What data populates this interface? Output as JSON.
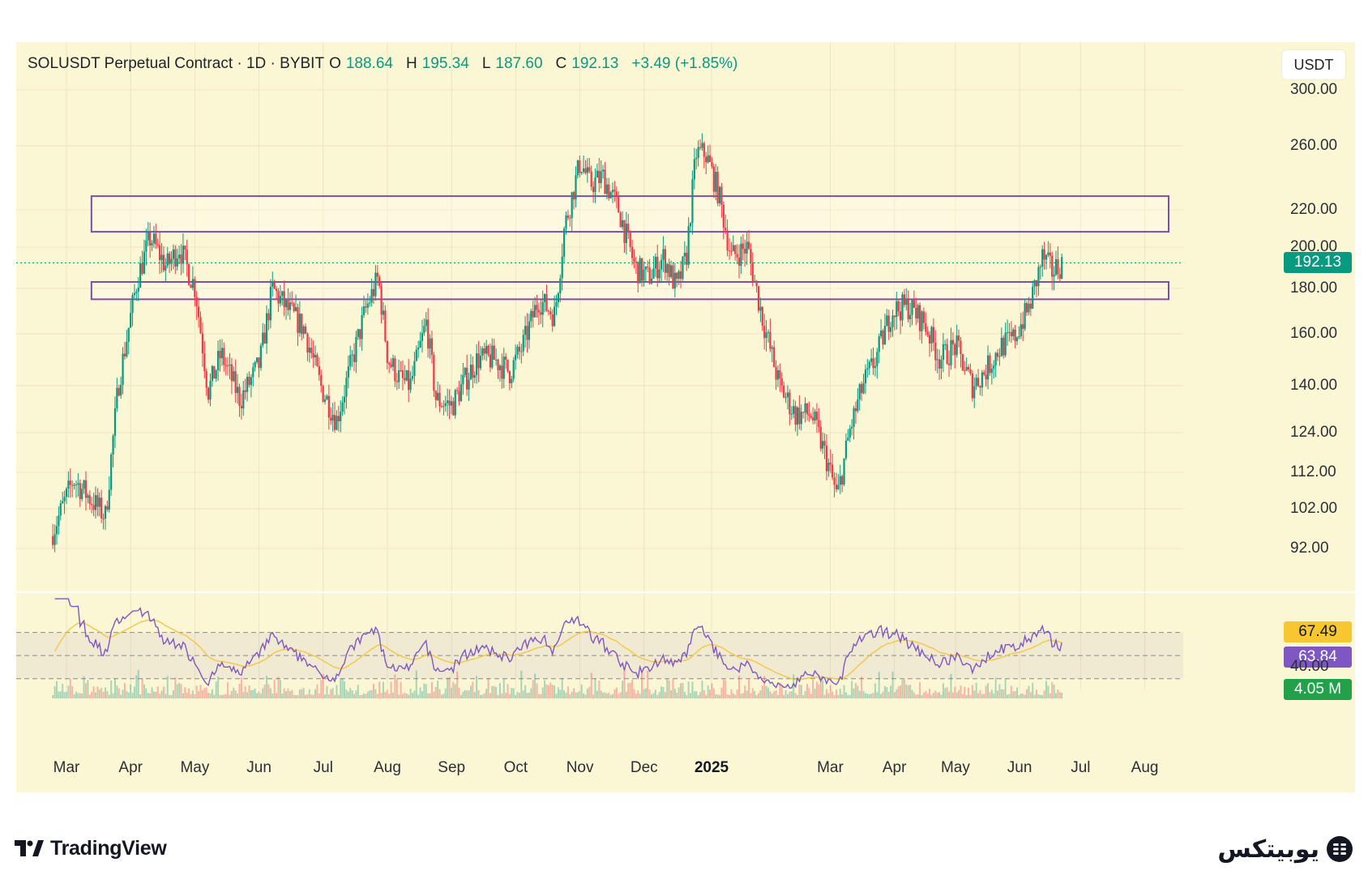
{
  "legend": {
    "symbol": "SOLUSDT Perpetual Contract · 1D · BYBIT",
    "open_label": "O",
    "open": "188.64",
    "high_label": "H",
    "high": "195.34",
    "low_label": "L",
    "low": "187.60",
    "close_label": "C",
    "close": "192.13",
    "change": "+3.49 (+1.85%)"
  },
  "price_unit": "USDT",
  "badges": {
    "last_price": "192.13",
    "rsi": "63.84",
    "rsi_ma": "67.49",
    "volume": "4.05 M"
  },
  "colors": {
    "up": "#089981",
    "down": "#f23645",
    "zone": "#7d4fa8",
    "rsi": "#7e57c2",
    "rsi_ma": "#f2c94c",
    "background": "#fbf7d4"
  },
  "branding": {
    "left": "TradingView",
    "right": "یوبیتکس"
  },
  "chart_data": {
    "type": "candlestick",
    "scale": "log",
    "y_ticks": [
      300,
      260,
      220,
      200,
      180,
      160,
      140,
      124,
      112,
      102,
      92
    ],
    "y_tick_labels": [
      "300.00",
      "260.00",
      "220.00",
      "200.00",
      "180.00",
      "160.00",
      "140.00",
      "124.00",
      "112.00",
      "102.00",
      "92.00"
    ],
    "x_ticks": [
      "Mar",
      "Apr",
      "May",
      "Jun",
      "Jul",
      "Aug",
      "Sep",
      "Oct",
      "Nov",
      "Dec",
      "2025",
      "Mar",
      "Apr",
      "May",
      "Jun",
      "Jul",
      "Aug"
    ],
    "price_path": [
      {
        "m": 0.0,
        "p": 95
      },
      {
        "m": 0.35,
        "p": 110
      },
      {
        "m": 0.55,
        "p": 106
      },
      {
        "m": 0.85,
        "p": 100
      },
      {
        "m": 1.05,
        "p": 140
      },
      {
        "m": 1.35,
        "p": 185
      },
      {
        "m": 1.55,
        "p": 205
      },
      {
        "m": 1.8,
        "p": 190
      },
      {
        "m": 2.0,
        "p": 200
      },
      {
        "m": 2.25,
        "p": 180
      },
      {
        "m": 2.45,
        "p": 138
      },
      {
        "m": 2.65,
        "p": 152
      },
      {
        "m": 2.95,
        "p": 135
      },
      {
        "m": 3.25,
        "p": 148
      },
      {
        "m": 3.45,
        "p": 180
      },
      {
        "m": 3.7,
        "p": 170
      },
      {
        "m": 3.95,
        "p": 162
      },
      {
        "m": 4.2,
        "p": 140
      },
      {
        "m": 4.45,
        "p": 128
      },
      {
        "m": 4.7,
        "p": 150
      },
      {
        "m": 4.9,
        "p": 170
      },
      {
        "m": 5.1,
        "p": 185
      },
      {
        "m": 5.25,
        "p": 150
      },
      {
        "m": 5.45,
        "p": 142
      },
      {
        "m": 5.6,
        "p": 140
      },
      {
        "m": 5.85,
        "p": 165
      },
      {
        "m": 6.0,
        "p": 135
      },
      {
        "m": 6.25,
        "p": 133
      },
      {
        "m": 6.45,
        "p": 142
      },
      {
        "m": 6.65,
        "p": 150
      },
      {
        "m": 6.9,
        "p": 150
      },
      {
        "m": 7.15,
        "p": 145
      },
      {
        "m": 7.35,
        "p": 155
      },
      {
        "m": 7.6,
        "p": 175
      },
      {
        "m": 7.85,
        "p": 168
      },
      {
        "m": 8.0,
        "p": 210
      },
      {
        "m": 8.25,
        "p": 250
      },
      {
        "m": 8.4,
        "p": 235
      },
      {
        "m": 8.6,
        "p": 240
      },
      {
        "m": 8.85,
        "p": 220
      },
      {
        "m": 9.1,
        "p": 190
      },
      {
        "m": 9.3,
        "p": 185
      },
      {
        "m": 9.55,
        "p": 195
      },
      {
        "m": 9.75,
        "p": 180
      },
      {
        "m": 9.9,
        "p": 195
      },
      {
        "m": 10.05,
        "p": 255
      },
      {
        "m": 10.2,
        "p": 255
      },
      {
        "m": 10.4,
        "p": 230
      },
      {
        "m": 10.6,
        "p": 195
      },
      {
        "m": 10.85,
        "p": 200
      },
      {
        "m": 11.1,
        "p": 165
      },
      {
        "m": 11.35,
        "p": 140
      },
      {
        "m": 11.6,
        "p": 130
      },
      {
        "m": 11.85,
        "p": 130
      },
      {
        "m": 12.1,
        "p": 115
      },
      {
        "m": 12.25,
        "p": 105
      },
      {
        "m": 12.45,
        "p": 125
      },
      {
        "m": 12.65,
        "p": 140
      },
      {
        "m": 12.85,
        "p": 150
      },
      {
        "m": 13.1,
        "p": 170
      },
      {
        "m": 13.35,
        "p": 172
      },
      {
        "m": 13.6,
        "p": 165
      },
      {
        "m": 13.85,
        "p": 150
      },
      {
        "m": 14.1,
        "p": 155
      },
      {
        "m": 14.35,
        "p": 140
      },
      {
        "m": 14.55,
        "p": 145
      },
      {
        "m": 14.8,
        "p": 155
      },
      {
        "m": 15.0,
        "p": 158
      },
      {
        "m": 15.25,
        "p": 172
      },
      {
        "m": 15.45,
        "p": 195
      },
      {
        "m": 15.6,
        "p": 188
      },
      {
        "m": 15.75,
        "p": 192
      }
    ],
    "zones": [
      {
        "from_month": 1.2,
        "to_month": 18.3,
        "low": 208,
        "high": 228
      },
      {
        "from_month": 1.2,
        "to_month": 18.3,
        "low": 175,
        "high": 183
      }
    ],
    "last_price": 192.13,
    "rsi": {
      "ticks": [
        "40.00"
      ],
      "levels": [
        70,
        50,
        30
      ],
      "value": 63.84,
      "ma_value": 67.49
    },
    "volume_last": "4.05 M"
  }
}
